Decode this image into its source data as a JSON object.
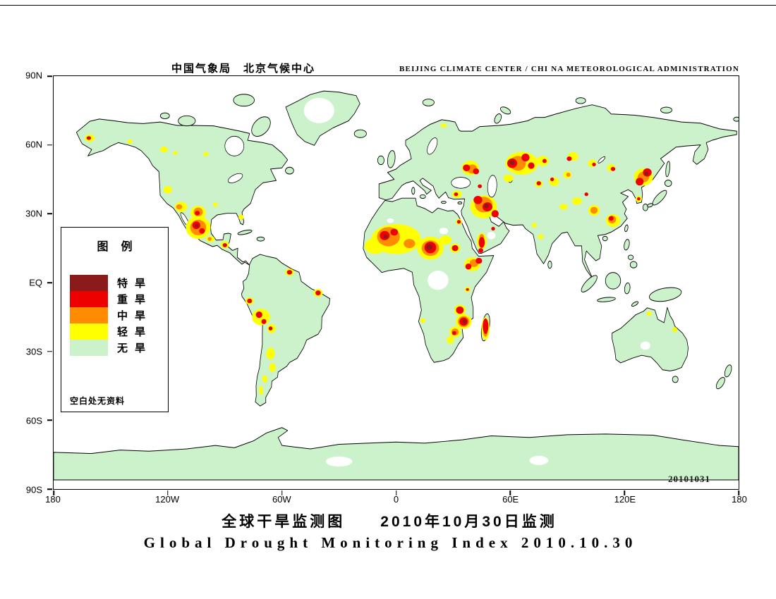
{
  "header": {
    "chinese": "中国气象局　北京气候中心",
    "english": "BEIJING CLIMATE CENTER / CHI NA METEOROLOGICAL ADMINISTRATION"
  },
  "footer": {
    "title_cn": "全球干旱监测图　　2010年10月30日监测",
    "title_en": "Global Drought Monitoring Index  2010.10.30"
  },
  "axes": {
    "lat": [
      "90N",
      "60N",
      "30N",
      "EQ",
      "30S",
      "60S",
      "90S"
    ],
    "lon": [
      "180",
      "120W",
      "60W",
      "0",
      "60E",
      "120E",
      "180"
    ]
  },
  "legend": {
    "title": "图例",
    "items": [
      {
        "label": "特旱",
        "color": "#8b1a1a",
        "level": "extreme"
      },
      {
        "label": "重旱",
        "color": "#ee0000",
        "level": "severe"
      },
      {
        "label": "中旱",
        "color": "#ff8c00",
        "level": "medium"
      },
      {
        "label": "轻旱",
        "color": "#ffff00",
        "level": "light"
      },
      {
        "label": "无旱",
        "color": "#ccf2cc",
        "level": "none"
      }
    ],
    "note": "空白处无资料"
  },
  "map": {
    "datestamp": "20101031",
    "land_color": "#ccf2cc",
    "ocean_color": "#ffffff",
    "level_colors": {
      "nodata": "#ffffff",
      "light": "#ffff00",
      "medium": "#ff8c00",
      "severe": "#ee0000",
      "extreme": "#8b1a1a"
    },
    "spots": [
      [
        22,
        1,
        5.5,
        4.2,
        "nodata"
      ],
      [
        -40.5,
        75,
        8,
        5.5,
        "nodata"
      ],
      [
        25,
        22.5,
        2.3,
        1.4,
        "nodata"
      ],
      [
        -3,
        27,
        1.8,
        1,
        "nodata"
      ],
      [
        50,
        20.5,
        2.2,
        1.6,
        "nodata"
      ],
      [
        131,
        -27.5,
        2.6,
        1.8,
        "nodata"
      ],
      [
        -30,
        -78,
        7,
        2.2,
        "nodata"
      ],
      [
        75,
        -77.5,
        5,
        2,
        "nodata"
      ],
      [
        -161,
        63,
        2.6,
        1.6,
        "light"
      ],
      [
        -140,
        61.5,
        1.4,
        0.9,
        "light"
      ],
      [
        -122,
        58,
        2,
        1.2,
        "light"
      ],
      [
        -116,
        56.5,
        1.3,
        0.8,
        "light"
      ],
      [
        -100,
        56,
        1.4,
        0.9,
        "light"
      ],
      [
        -120,
        40.5,
        2.2,
        1.6,
        "light"
      ],
      [
        -113,
        33,
        3.2,
        2.2,
        "light"
      ],
      [
        -104,
        30.5,
        4,
        3,
        "light"
      ],
      [
        -104,
        24,
        6.5,
        5,
        "light"
      ],
      [
        -97.5,
        19,
        2.2,
        1.3,
        "light"
      ],
      [
        -90,
        16.5,
        2.2,
        1.6,
        "light"
      ],
      [
        -81.5,
        28.5,
        1.4,
        1.1,
        "light"
      ],
      [
        -95,
        34,
        1.3,
        0.9,
        "light"
      ],
      [
        -56,
        4.5,
        2.3,
        1.6,
        "light"
      ],
      [
        -41,
        -4.5,
        2.4,
        1.7,
        "light"
      ],
      [
        -77,
        -8,
        2.2,
        1.6,
        "light"
      ],
      [
        -71,
        -15,
        4.8,
        3.6,
        "light"
      ],
      [
        -65.5,
        -20,
        2.2,
        2,
        "light"
      ],
      [
        -66,
        -31,
        2.2,
        2.6,
        "light"
      ],
      [
        -65,
        -37,
        1.7,
        1.9,
        "light"
      ],
      [
        -69,
        -42,
        1.3,
        1.6,
        "light"
      ],
      [
        -71,
        -47,
        1.1,
        1.9,
        "light"
      ],
      [
        0,
        19,
        13,
        6.5,
        "light"
      ],
      [
        -11,
        16,
        5.5,
        3.5,
        "light"
      ],
      [
        18,
        15,
        7,
        5,
        "light"
      ],
      [
        26,
        18.5,
        3.2,
        2,
        "light"
      ],
      [
        31,
        15,
        2.7,
        2,
        "light"
      ],
      [
        40,
        8,
        4.2,
        3,
        "light"
      ],
      [
        33,
        26.5,
        1.7,
        1.3,
        "light"
      ],
      [
        37.5,
        -3,
        1.5,
        1.2,
        "light"
      ],
      [
        33.5,
        -12,
        3,
        2.4,
        "light"
      ],
      [
        35.5,
        -17,
        4.2,
        3.2,
        "light"
      ],
      [
        31,
        -21.5,
        3,
        2.4,
        "light"
      ],
      [
        28.5,
        -25,
        1.9,
        1.6,
        "light"
      ],
      [
        47,
        -20,
        2.1,
        5,
        "light"
      ],
      [
        14,
        -16.5,
        1.3,
        1,
        "light"
      ],
      [
        25,
        68.5,
        1.6,
        0.9,
        "light"
      ],
      [
        39,
        50,
        4.5,
        3.2,
        "light"
      ],
      [
        32,
        38.5,
        2.6,
        1.6,
        "light"
      ],
      [
        46,
        33,
        7,
        5,
        "light"
      ],
      [
        45,
        18,
        2.6,
        3.6,
        "light"
      ],
      [
        66,
        52,
        8.5,
        5,
        "light"
      ],
      [
        77,
        53,
        3.2,
        2.2,
        "light"
      ],
      [
        59,
        45.5,
        2.6,
        1.6,
        "light"
      ],
      [
        75,
        43,
        2,
        1.5,
        "light"
      ],
      [
        83,
        44,
        2.7,
        1.9,
        "light"
      ],
      [
        90,
        47,
        2.2,
        1.6,
        "light"
      ],
      [
        93,
        55,
        2.7,
        1.9,
        "light"
      ],
      [
        103,
        52,
        2.2,
        1.6,
        "light"
      ],
      [
        113,
        50,
        2.2,
        1.6,
        "light"
      ],
      [
        130,
        46,
        5,
        3.8,
        "light"
      ],
      [
        127.5,
        36.5,
        1.7,
        1.4,
        "light"
      ],
      [
        104,
        31.5,
        3,
        2.3,
        "light"
      ],
      [
        114,
        27,
        3.8,
        2.8,
        "light"
      ],
      [
        95,
        35.5,
        2.6,
        1.6,
        "light"
      ],
      [
        88,
        33,
        2.1,
        1.3,
        "light"
      ],
      [
        76,
        20,
        1.4,
        1.1,
        "light"
      ],
      [
        72.5,
        25,
        1.3,
        1,
        "light"
      ],
      [
        133,
        -13.5,
        1.3,
        1,
        "light"
      ],
      [
        146.5,
        -20.5,
        1.3,
        1.1,
        "light"
      ],
      [
        -114,
        33,
        1.6,
        1.1,
        "medium"
      ],
      [
        -104,
        30.8,
        2.4,
        1.9,
        "medium"
      ],
      [
        -104,
        24,
        4.2,
        3.4,
        "medium"
      ],
      [
        -98,
        19,
        1,
        0.8,
        "medium"
      ],
      [
        -4,
        20,
        6,
        4.2,
        "medium"
      ],
      [
        7,
        17,
        3,
        2,
        "medium"
      ],
      [
        18,
        15,
        4.6,
        3.4,
        "medium"
      ],
      [
        41,
        8.5,
        2.3,
        1.7,
        "medium"
      ],
      [
        35.5,
        -17,
        3,
        2.4,
        "medium"
      ],
      [
        31,
        -21.5,
        1.9,
        1.5,
        "medium"
      ],
      [
        47,
        -22,
        1.1,
        1.6,
        "medium"
      ],
      [
        46,
        34,
        4.6,
        3.4,
        "medium"
      ],
      [
        45,
        19.5,
        1.3,
        1.7,
        "medium"
      ],
      [
        40,
        49.5,
        2.6,
        2,
        "medium"
      ],
      [
        64,
        52,
        4.2,
        3.2,
        "medium"
      ],
      [
        90.5,
        47,
        1.1,
        0.9,
        "medium"
      ],
      [
        130,
        46,
        3,
        2.3,
        "medium"
      ],
      [
        104,
        31.5,
        1.9,
        1.5,
        "medium"
      ],
      [
        113.5,
        27.5,
        2.1,
        1.7,
        "medium"
      ],
      [
        -161.5,
        63,
        1.2,
        0.8,
        "severe"
      ],
      [
        -104.5,
        30.3,
        1.3,
        1,
        "severe"
      ],
      [
        -105,
        25,
        2.1,
        1.7,
        "severe"
      ],
      [
        -102,
        22.5,
        1.5,
        1.2,
        "severe"
      ],
      [
        -90,
        16.3,
        1.2,
        0.9,
        "severe"
      ],
      [
        -56,
        4.5,
        1.4,
        1,
        "severe"
      ],
      [
        -41,
        -4.5,
        1.4,
        1.1,
        "severe"
      ],
      [
        -77,
        -8,
        1.3,
        1,
        "severe"
      ],
      [
        -72,
        -14,
        1.7,
        1.4,
        "severe"
      ],
      [
        -69.5,
        -17,
        1.3,
        1.1,
        "severe"
      ],
      [
        -66,
        -20,
        1,
        0.9,
        "severe"
      ],
      [
        -6,
        20.5,
        2.6,
        2,
        "severe"
      ],
      [
        -1,
        22,
        2,
        1.5,
        "severe"
      ],
      [
        18,
        15.3,
        3.1,
        2.5,
        "severe"
      ],
      [
        31,
        15,
        1.7,
        1.3,
        "severe"
      ],
      [
        38,
        7,
        1.6,
        1.3,
        "severe"
      ],
      [
        43.5,
        9.5,
        1.7,
        1.3,
        "severe"
      ],
      [
        33,
        26.5,
        1,
        0.8,
        "severe"
      ],
      [
        37.5,
        -3,
        0.8,
        0.6,
        "severe"
      ],
      [
        33.5,
        -12,
        2,
        1.6,
        "severe"
      ],
      [
        35.5,
        -17,
        2.2,
        1.8,
        "severe"
      ],
      [
        30.5,
        -22,
        1.1,
        0.9,
        "severe"
      ],
      [
        47,
        -19,
        1.5,
        3.4,
        "severe"
      ],
      [
        37,
        50,
        1.9,
        1.5,
        "severe"
      ],
      [
        42,
        48.5,
        1.6,
        1.3,
        "severe"
      ],
      [
        31.5,
        38.5,
        1.1,
        0.8,
        "severe"
      ],
      [
        43,
        36,
        2.3,
        1.8,
        "severe"
      ],
      [
        48,
        33,
        2.6,
        2,
        "severe"
      ],
      [
        52,
        30,
        1.9,
        1.6,
        "severe"
      ],
      [
        44,
        42,
        1.1,
        0.8,
        "severe"
      ],
      [
        45,
        17.5,
        1.6,
        2.4,
        "severe"
      ],
      [
        44.5,
        14,
        1.3,
        1,
        "severe"
      ],
      [
        51,
        23.5,
        1,
        0.8,
        "severe"
      ],
      [
        61,
        52,
        2.6,
        2.1,
        "severe"
      ],
      [
        68,
        54.5,
        2.1,
        1.7,
        "severe"
      ],
      [
        71,
        51,
        1.7,
        1.4,
        "severe"
      ],
      [
        78,
        53,
        1.1,
        0.9,
        "severe"
      ],
      [
        75,
        43.3,
        1.2,
        0.9,
        "severe"
      ],
      [
        82,
        45,
        1,
        0.8,
        "severe"
      ],
      [
        91,
        54,
        1.3,
        1,
        "severe"
      ],
      [
        104,
        51.5,
        1,
        0.8,
        "severe"
      ],
      [
        114,
        49.5,
        1.2,
        0.9,
        "severe"
      ],
      [
        128,
        44,
        2.1,
        1.7,
        "severe"
      ],
      [
        132,
        48,
        2.3,
        1.8,
        "severe"
      ],
      [
        127.5,
        36.5,
        0.9,
        0.7,
        "severe"
      ],
      [
        113,
        28,
        1.3,
        1,
        "severe"
      ],
      [
        100,
        38.5,
        1,
        0.8,
        "severe"
      ],
      [
        -104.8,
        24.8,
        0.9,
        0.7,
        "extreme"
      ],
      [
        -5.5,
        20,
        1.1,
        0.8,
        "extreme"
      ],
      [
        17.5,
        15.5,
        1.6,
        1.2,
        "extreme"
      ],
      [
        47.5,
        33.5,
        1.2,
        1,
        "extreme"
      ],
      [
        61,
        52.3,
        1.3,
        1,
        "extreme"
      ],
      [
        131.5,
        47.5,
        1,
        0.8,
        "extreme"
      ],
      [
        36,
        -17,
        1,
        0.9,
        "extreme"
      ]
    ]
  }
}
